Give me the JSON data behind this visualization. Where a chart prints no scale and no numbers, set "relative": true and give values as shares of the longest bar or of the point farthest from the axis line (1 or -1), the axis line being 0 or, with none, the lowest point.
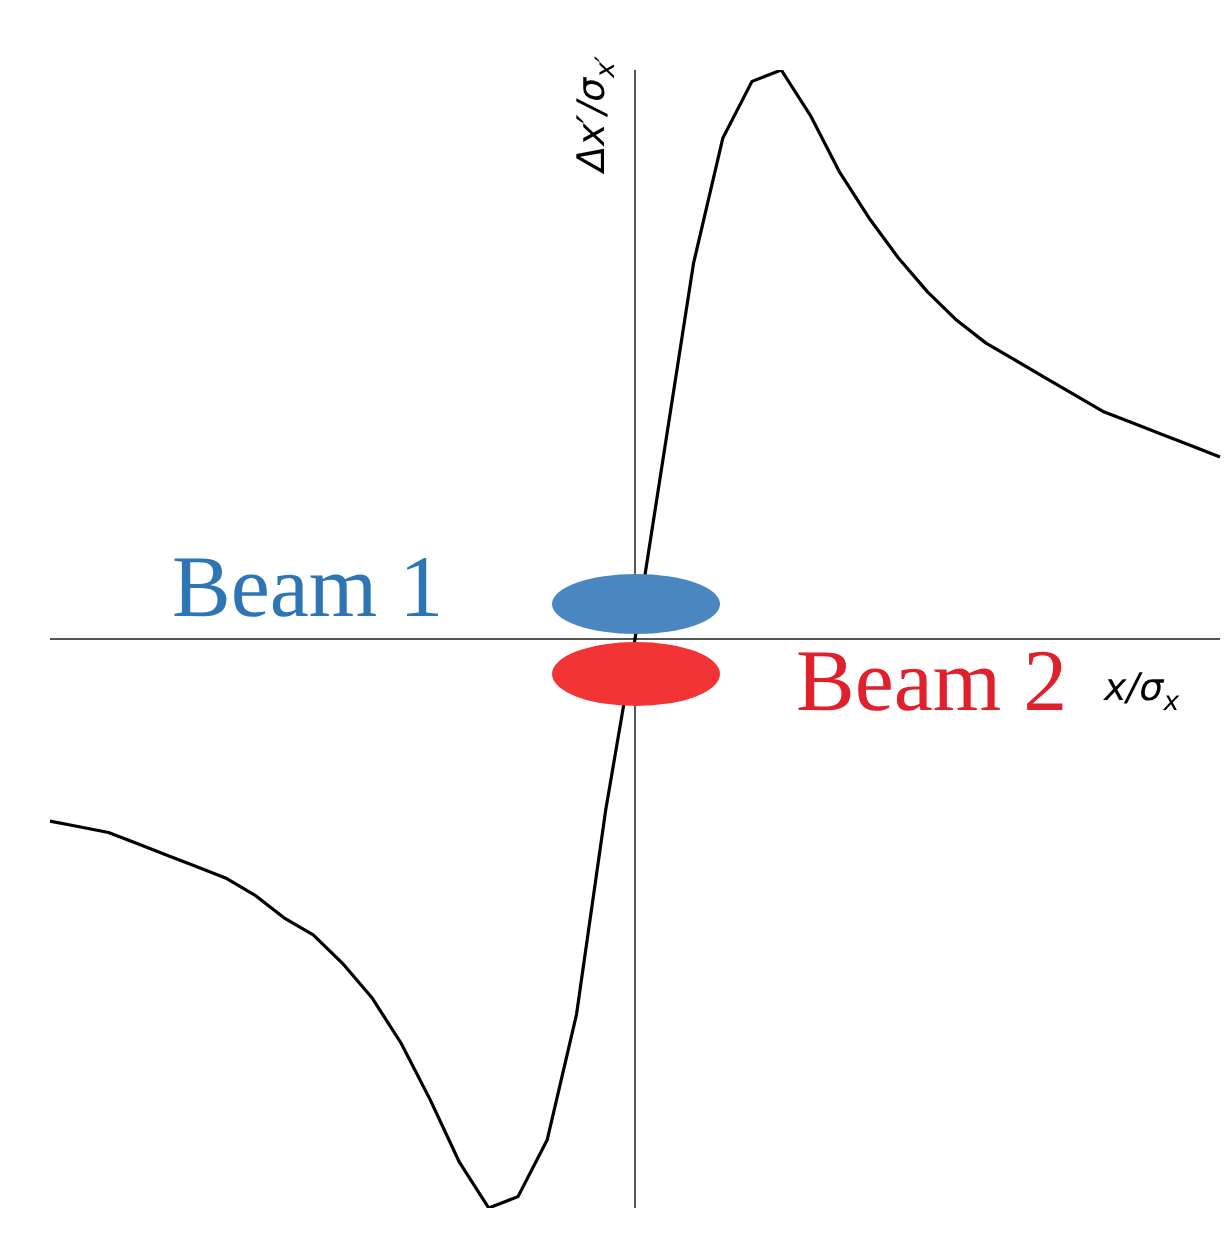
{
  "chart_data": {
    "type": "line",
    "relative": true,
    "xlabel": "x/σ$_{x}$",
    "ylabel": "Δx′/σ$_{x′}$",
    "categories": [
      null,
      null,
      null,
      null,
      null,
      null,
      null,
      null,
      null,
      null,
      null,
      null,
      null,
      null,
      null,
      null,
      null,
      null,
      null,
      null,
      null,
      null,
      null,
      null,
      null,
      null,
      null,
      null,
      null,
      null,
      null,
      null,
      null,
      null,
      null,
      null,
      null,
      null,
      null,
      null,
      null
    ],
    "series": [
      {
        "color": "#000000",
        "values": [
          -0.32,
          -0.33,
          -0.34,
          -0.36,
          -0.38,
          -0.4,
          -0.42,
          -0.45,
          -0.49,
          -0.52,
          -0.57,
          -0.63,
          -0.71,
          -0.81,
          -0.92,
          -1.0,
          -0.98,
          -0.88,
          -0.66,
          -0.3,
          0,
          0.33,
          0.66,
          0.88,
          0.98,
          1.0,
          0.92,
          0.82,
          0.74,
          0.67,
          0.61,
          0.56,
          0.52,
          0.49,
          0.46,
          0.43,
          0.4,
          0.38,
          0.36,
          0.34,
          0.32
        ]
      }
    ],
    "annotations": [
      "Beam 1",
      "Beam 2"
    ],
    "marker": "none",
    "line_style": "solid"
  }
}
